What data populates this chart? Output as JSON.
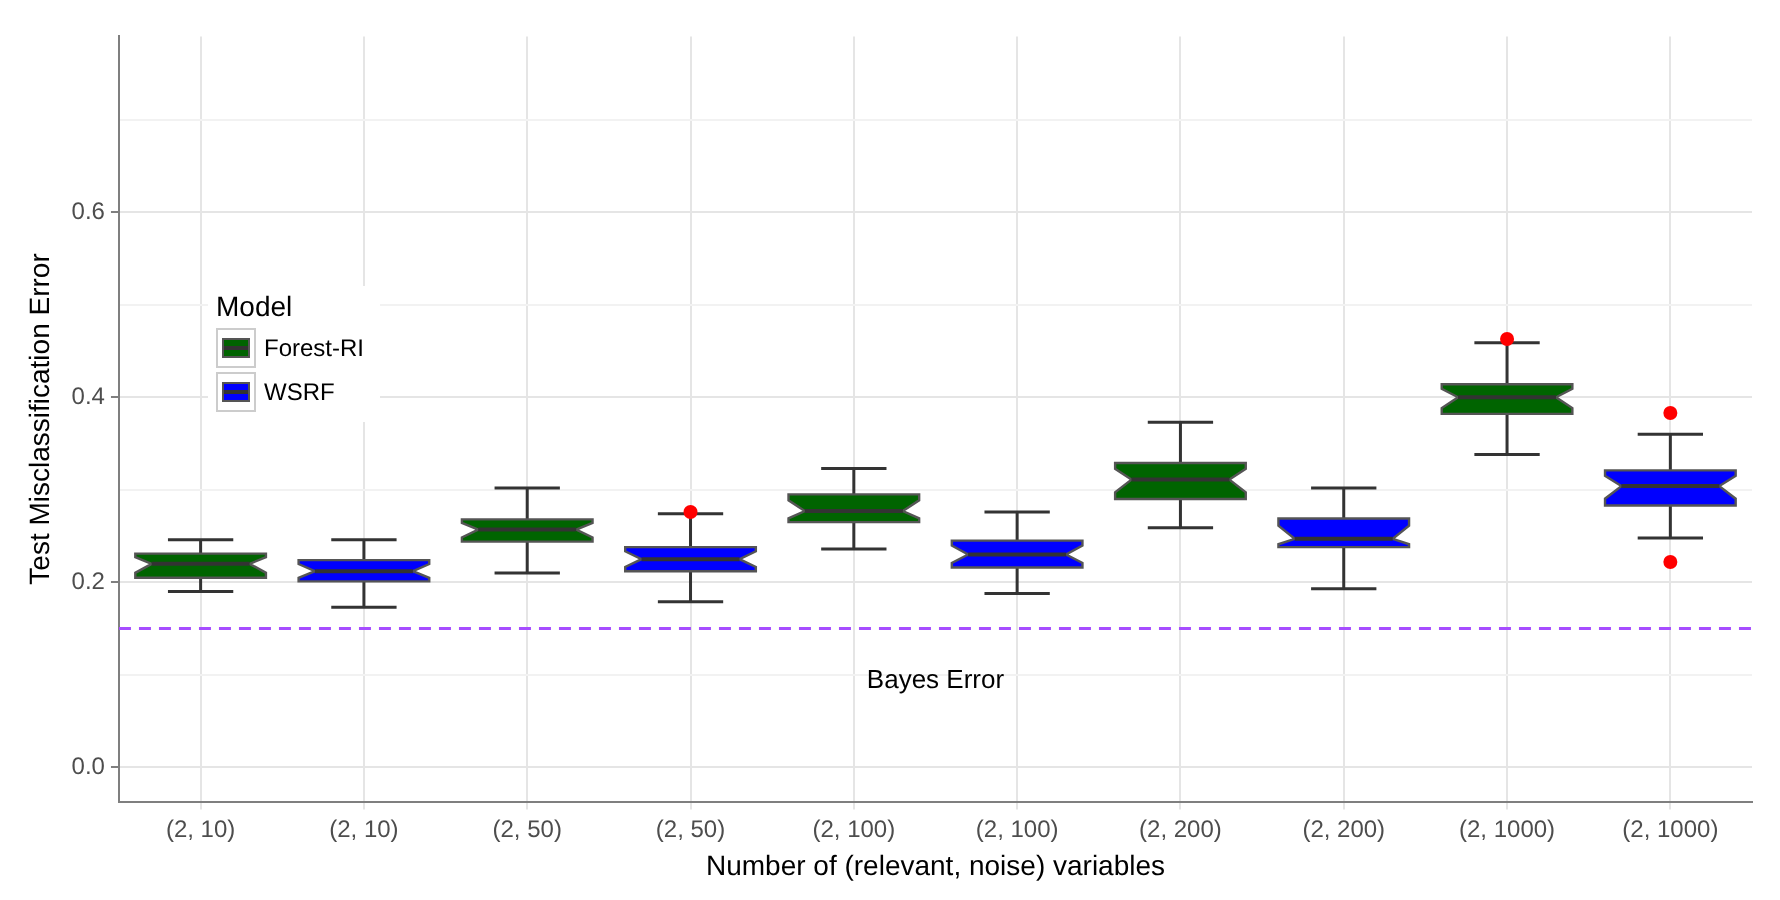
{
  "chart_data": {
    "type": "box",
    "xlabel": "Number of (relevant, noise) variables",
    "ylabel": "Test Misclassification Error",
    "legend_title": "Model",
    "legend": "left",
    "grid": true,
    "categories": [
      "(2, 10)",
      "(2, 10)",
      "(2, 50)",
      "(2, 50)",
      "(2, 100)",
      "(2, 100)",
      "(2, 200)",
      "(2, 200)",
      "(2, 1000)",
      "(2, 1000)"
    ],
    "ylim": [
      -0.037,
      0.79
    ],
    "yticks": [
      {
        "value": 0,
        "label": "0.0"
      },
      {
        "value": 0.1,
        "label": null
      },
      {
        "value": 0.2,
        "label": "0.2"
      },
      {
        "value": 0.3,
        "label": null
      },
      {
        "value": 0.4,
        "label": "0.4"
      },
      {
        "value": 0.5,
        "label": null
      },
      {
        "value": 0.6,
        "label": "0.6"
      },
      {
        "value": 0.7,
        "label": null
      }
    ],
    "series": [
      {
        "name": "Forest-RI",
        "color": "#006400",
        "boxes": [
          {
            "low": 0.19,
            "q1": 0.205,
            "median": 0.22,
            "q3": 0.231,
            "high": 0.246
          },
          null,
          {
            "low": 0.21,
            "q1": 0.244,
            "median": 0.257,
            "q3": 0.268,
            "high": 0.302
          },
          null,
          {
            "low": 0.236,
            "q1": 0.265,
            "median": 0.277,
            "q3": 0.295,
            "high": 0.323
          },
          null,
          {
            "low": 0.259,
            "q1": 0.29,
            "median": 0.311,
            "q3": 0.329,
            "high": 0.373
          },
          null,
          {
            "low": 0.338,
            "q1": 0.382,
            "median": 0.4,
            "q3": 0.414,
            "high": 0.459,
            "outliers": [
              0.463
            ]
          },
          null
        ]
      },
      {
        "name": "WSRF",
        "color": "#0000ff",
        "boxes": [
          null,
          {
            "low": 0.173,
            "q1": 0.201,
            "median": 0.212,
            "q3": 0.224,
            "high": 0.246
          },
          null,
          {
            "low": 0.179,
            "q1": 0.212,
            "median": 0.225,
            "q3": 0.238,
            "high": 0.274,
            "outliers": [
              0.276
            ]
          },
          null,
          {
            "low": 0.188,
            "q1": 0.216,
            "median": 0.23,
            "q3": 0.245,
            "high": 0.276
          },
          null,
          {
            "low": 0.193,
            "q1": 0.238,
            "median": 0.247,
            "q3": 0.269,
            "high": 0.302
          },
          null,
          {
            "low": 0.248,
            "q1": 0.283,
            "median": 0.304,
            "q3": 0.321,
            "high": 0.36,
            "outliers": [
              0.383,
              0.222
            ]
          }
        ]
      }
    ],
    "ref_lines": [
      {
        "axis": "y",
        "value": 0.15,
        "label": "Bayes Error",
        "color": "#a64dff",
        "line_style": "dashed"
      }
    ]
  }
}
